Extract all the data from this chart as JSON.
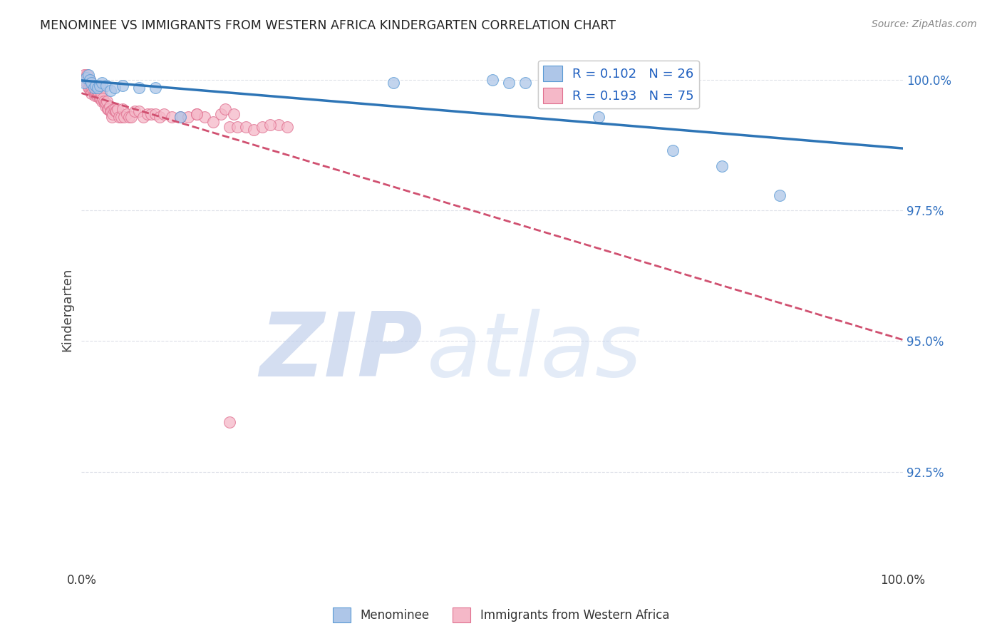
{
  "title": "MENOMINEE VS IMMIGRANTS FROM WESTERN AFRICA KINDERGARTEN CORRELATION CHART",
  "source": "Source: ZipAtlas.com",
  "ylabel": "Kindergarten",
  "xlim": [
    0.0,
    1.0
  ],
  "ylim": [
    0.906,
    1.006
  ],
  "yticks": [
    0.925,
    0.95,
    0.975,
    1.0
  ],
  "ytick_labels": [
    "92.5%",
    "95.0%",
    "97.5%",
    "100.0%"
  ],
  "xtick_positions": [
    0.0,
    1.0
  ],
  "xtick_labels": [
    "0.0%",
    "100.0%"
  ],
  "blue_R": 0.102,
  "blue_N": 26,
  "pink_R": 0.193,
  "pink_N": 75,
  "blue_color": "#aec6e8",
  "pink_color": "#f5b8c8",
  "blue_edge_color": "#5b9bd5",
  "pink_edge_color": "#e07090",
  "blue_line_color": "#2e75b6",
  "pink_line_color": "#d05070",
  "blue_scatter_x": [
    0.003,
    0.006,
    0.008,
    0.01,
    0.012,
    0.015,
    0.017,
    0.02,
    0.022,
    0.025,
    0.03,
    0.035,
    0.04,
    0.05,
    0.07,
    0.09,
    0.12,
    0.38,
    0.5,
    0.52,
    0.54,
    0.63,
    0.66,
    0.72,
    0.78,
    0.85
  ],
  "blue_scatter_y": [
    0.9995,
    1.0005,
    1.001,
    1.0,
    0.9995,
    0.9985,
    0.999,
    0.9985,
    0.999,
    0.9995,
    0.999,
    0.998,
    0.9985,
    0.999,
    0.9985,
    0.9985,
    0.993,
    0.9995,
    1.0,
    0.9995,
    0.9995,
    0.993,
    0.9995,
    0.9865,
    0.9835,
    0.978
  ],
  "pink_scatter_x": [
    0.003,
    0.005,
    0.006,
    0.007,
    0.008,
    0.009,
    0.01,
    0.011,
    0.012,
    0.013,
    0.014,
    0.015,
    0.016,
    0.016,
    0.017,
    0.018,
    0.019,
    0.02,
    0.02,
    0.021,
    0.022,
    0.023,
    0.024,
    0.025,
    0.026,
    0.027,
    0.028,
    0.029,
    0.03,
    0.031,
    0.032,
    0.033,
    0.034,
    0.035,
    0.036,
    0.037,
    0.038,
    0.039,
    0.04,
    0.041,
    0.042,
    0.044,
    0.046,
    0.048,
    0.05,
    0.052,
    0.055,
    0.058,
    0.06,
    0.065,
    0.07,
    0.075,
    0.08,
    0.085,
    0.09,
    0.095,
    0.1,
    0.11,
    0.12,
    0.13,
    0.14,
    0.15,
    0.16,
    0.18,
    0.19,
    0.2,
    0.21,
    0.22,
    0.24,
    0.25,
    0.17,
    0.175,
    0.185,
    0.14,
    0.23
  ],
  "pink_scatter_y": [
    1.001,
    1.0,
    0.9995,
    1.001,
    0.9985,
    0.9985,
    1.0,
    0.9985,
    0.9975,
    0.9985,
    0.998,
    0.999,
    0.997,
    0.9975,
    0.9975,
    0.9975,
    0.997,
    0.9975,
    0.998,
    0.9975,
    0.9965,
    0.9965,
    0.9975,
    0.996,
    0.9965,
    0.996,
    0.9955,
    0.995,
    0.9955,
    0.996,
    0.9945,
    0.9945,
    0.995,
    0.994,
    0.994,
    0.993,
    0.9935,
    0.9945,
    0.9945,
    0.994,
    0.994,
    0.9945,
    0.993,
    0.993,
    0.9945,
    0.993,
    0.9935,
    0.993,
    0.993,
    0.994,
    0.994,
    0.993,
    0.9935,
    0.9935,
    0.9935,
    0.993,
    0.9935,
    0.993,
    0.993,
    0.993,
    0.9935,
    0.993,
    0.992,
    0.991,
    0.991,
    0.991,
    0.9905,
    0.991,
    0.9915,
    0.991,
    0.9935,
    0.9945,
    0.9935,
    0.9935,
    0.9915
  ],
  "pink_outlier_x": [
    0.18
  ],
  "pink_outlier_y": [
    0.9345
  ],
  "watermark_zip": "ZIP",
  "watermark_atlas": "atlas",
  "watermark_color": "#c8d8f0",
  "background_color": "#ffffff",
  "grid_color": "#dde0e8"
}
